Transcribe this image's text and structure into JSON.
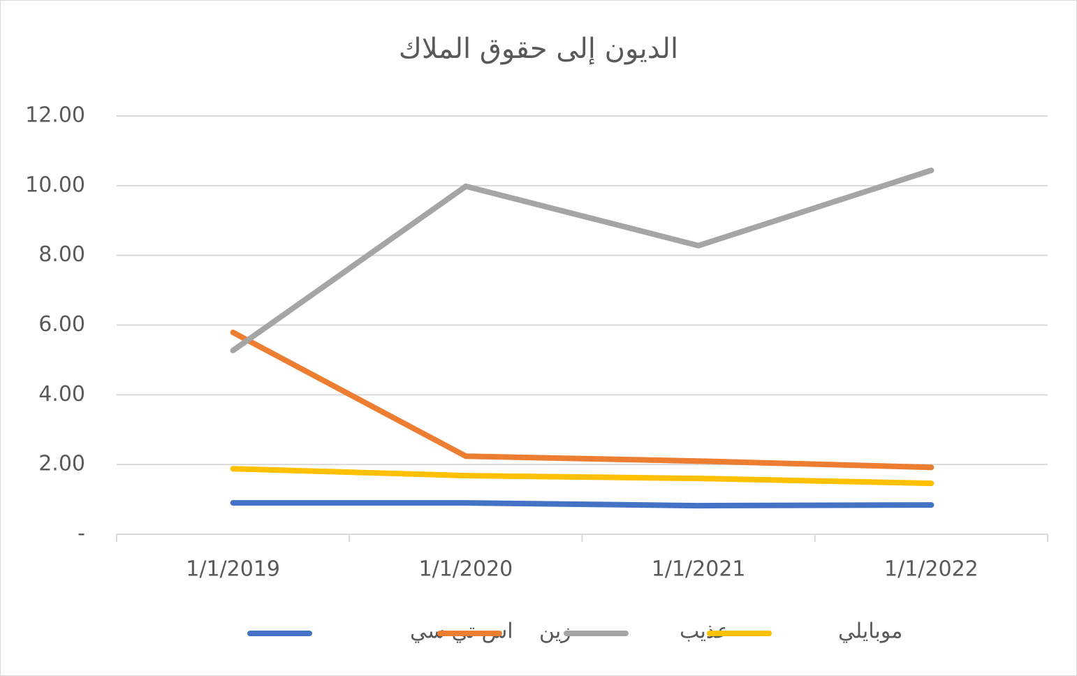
{
  "chart_data": {
    "type": "line",
    "title": "الديون إلى حقوق الملاك",
    "categories": [
      "1/1/2019",
      "1/1/2020",
      "1/1/2021",
      "1/1/2022"
    ],
    "series": [
      {
        "name": "اس تي سي",
        "color": "#4472c4",
        "values": [
          0.9,
          0.9,
          0.82,
          0.84
        ]
      },
      {
        "name": "زين",
        "color": "#ed7d31",
        "values": [
          5.79,
          2.24,
          2.1,
          1.92
        ]
      },
      {
        "name": "عذيب",
        "color": "#a5a5a5",
        "values": [
          5.27,
          9.98,
          8.28,
          10.44
        ]
      },
      {
        "name": "موبايلي",
        "color": "#ffc000",
        "values": [
          1.88,
          1.68,
          1.6,
          1.46
        ]
      }
    ],
    "ylim": [
      0,
      12
    ],
    "yticks": [
      {
        "value": 0,
        "label": "-"
      },
      {
        "value": 2,
        "label": "2.00"
      },
      {
        "value": 4,
        "label": "4.00"
      },
      {
        "value": 6,
        "label": "6.00"
      },
      {
        "value": 8,
        "label": "8.00"
      },
      {
        "value": 10,
        "label": "10.00"
      },
      {
        "value": 12,
        "label": "12.00"
      }
    ],
    "grid": true,
    "legend": "bottom"
  }
}
